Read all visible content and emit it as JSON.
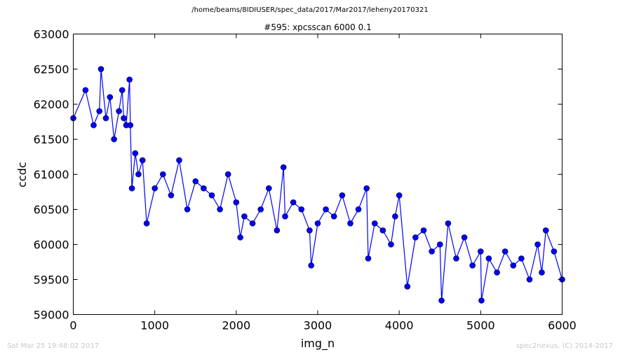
{
  "header": {
    "path": "/home/beams/8IDIUSER/spec_data/2017/Mar2017/leheny20170321"
  },
  "footer": {
    "timestamp": "Sat Mar 25 19:48:02 2017",
    "credit": "spec2nexus, (C) 2014-2017"
  },
  "chart_data": {
    "type": "line",
    "title": "#595: xpcsscan 6000 0.1",
    "xlabel": "img_n",
    "ylabel": "ccdc",
    "xlim": [
      0,
      6000
    ],
    "ylim": [
      59000,
      63000
    ],
    "xticks": [
      0,
      1000,
      2000,
      3000,
      4000,
      5000,
      6000
    ],
    "yticks": [
      59000,
      59500,
      60000,
      60500,
      61000,
      61500,
      62000,
      62500,
      63000
    ],
    "grid": false,
    "series": [
      {
        "color": "#0000ff",
        "marker": "circle",
        "x": [
          0,
          150,
          250,
          320,
          340,
          400,
          450,
          500,
          560,
          600,
          620,
          650,
          690,
          700,
          720,
          760,
          800,
          850,
          900,
          1000,
          1100,
          1200,
          1300,
          1400,
          1500,
          1600,
          1700,
          1800,
          1900,
          2000,
          2050,
          2100,
          2200,
          2300,
          2400,
          2500,
          2580,
          2600,
          2700,
          2800,
          2900,
          2920,
          3000,
          3100,
          3200,
          3300,
          3400,
          3500,
          3600,
          3620,
          3700,
          3800,
          3900,
          3950,
          4000,
          4100,
          4200,
          4300,
          4400,
          4500,
          4520,
          4600,
          4700,
          4800,
          4900,
          5000,
          5010,
          5100,
          5200,
          5300,
          5400,
          5500,
          5600,
          5700,
          5750,
          5800,
          5900,
          6000
        ],
        "y": [
          61800,
          62200,
          61700,
          61900,
          62500,
          61800,
          62100,
          61500,
          61900,
          62200,
          61800,
          61700,
          62350,
          61700,
          60800,
          61300,
          61000,
          61200,
          60300,
          60800,
          61000,
          60700,
          61200,
          60500,
          60900,
          60800,
          60700,
          60500,
          61000,
          60600,
          60100,
          60400,
          60300,
          60500,
          60800,
          60200,
          61100,
          60400,
          60600,
          60500,
          60200,
          59700,
          60300,
          60500,
          60400,
          60700,
          60300,
          60500,
          60800,
          59800,
          60300,
          60200,
          60000,
          60400,
          60700,
          59400,
          60100,
          60200,
          59900,
          60000,
          59200,
          60300,
          59800,
          60100,
          59700,
          59900,
          59200,
          59800,
          59600,
          59900,
          59700,
          59800,
          59500,
          60000,
          59600,
          60200,
          59900,
          59500
        ]
      }
    ]
  }
}
